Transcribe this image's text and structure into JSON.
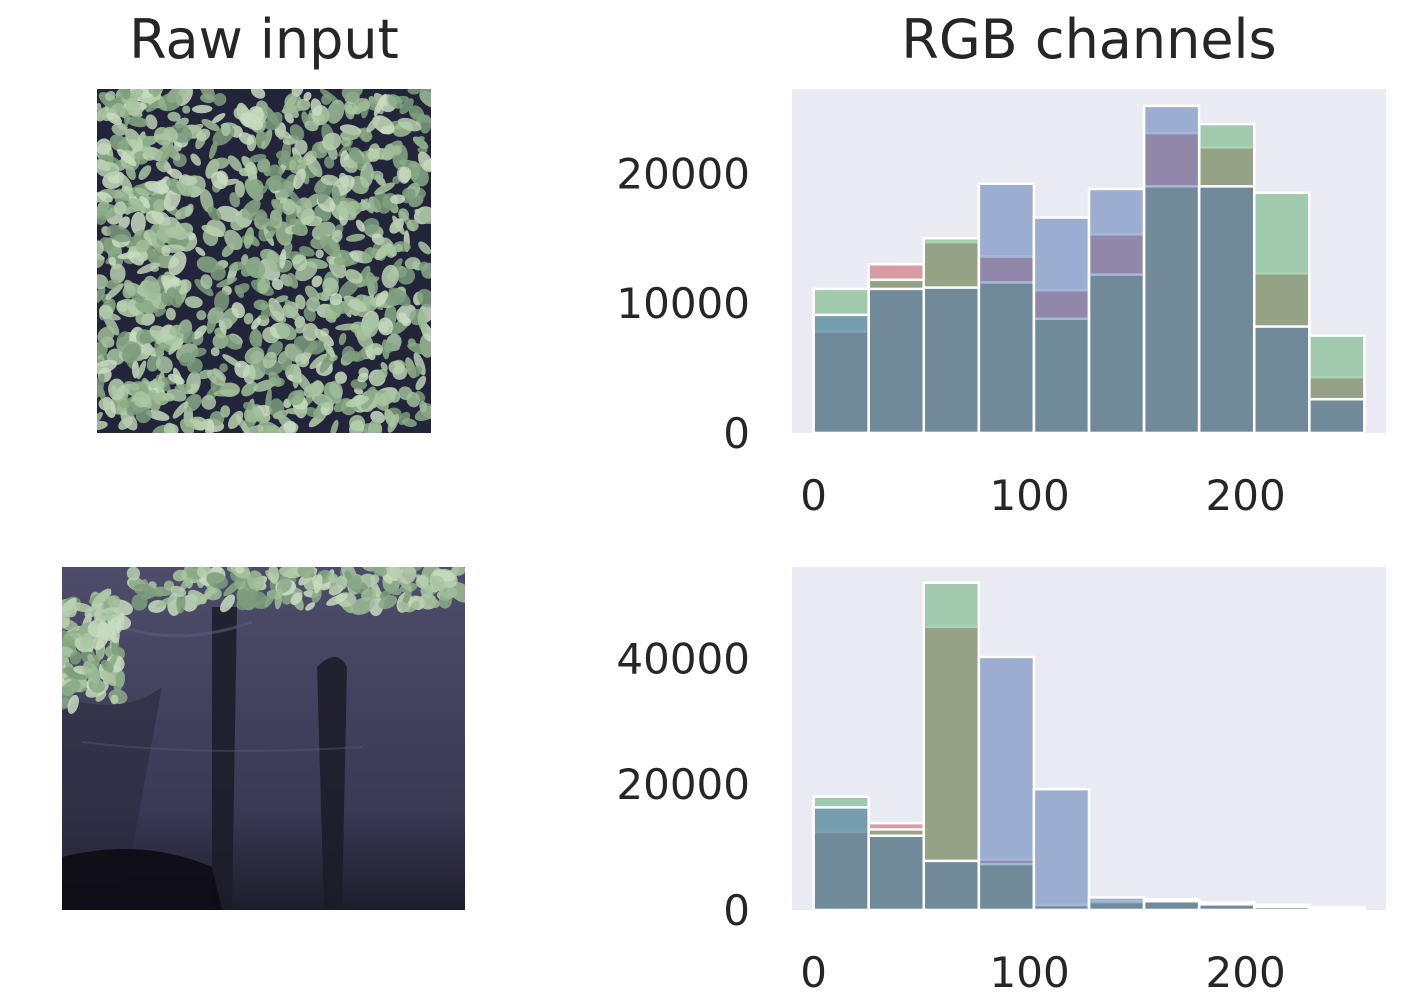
{
  "column_titles": {
    "left": "Raw input",
    "right": "RGB channels"
  },
  "images": [
    {
      "name": "aquatic fern mat over dark water",
      "tone": "mostly green-grey leaves"
    },
    {
      "name": "mostly open dark water with a few leaves",
      "tone": "dark purple-blue"
    }
  ],
  "colors": {
    "red": "#c44e52",
    "green": "#55a868",
    "blue": "#4c72b0",
    "plot_bg": "#eaeaf2",
    "bar_edge": "#ffffff",
    "channel_alpha": 0.5
  },
  "chart_data": [
    {
      "type": "histogram",
      "title": "",
      "bin_edges": [
        0,
        25.5,
        51,
        76.5,
        102,
        127.5,
        153,
        178.5,
        204,
        229.5,
        255
      ],
      "xlim": [
        -10,
        265
      ],
      "ylim": [
        0,
        26500
      ],
      "xticks": [
        0,
        100,
        200
      ],
      "yticks": [
        0,
        10000,
        20000
      ],
      "xtick_labels": [
        "0",
        "100",
        "200"
      ],
      "ytick_labels": [
        "0",
        "10000",
        "20000"
      ],
      "series": [
        {
          "channel": "red",
          "values": [
            7800,
            13000,
            14700,
            13600,
            11000,
            15300,
            23100,
            22000,
            12300,
            4300
          ]
        },
        {
          "channel": "green",
          "values": [
            11100,
            11800,
            15000,
            11600,
            8800,
            12200,
            19000,
            23800,
            18500,
            7500
          ]
        },
        {
          "channel": "blue",
          "values": [
            9100,
            11100,
            11200,
            19200,
            16600,
            18800,
            25200,
            19000,
            8200,
            2600
          ]
        }
      ],
      "grid": false
    },
    {
      "type": "histogram",
      "title": "",
      "bin_edges": [
        0,
        25.5,
        51,
        76.5,
        102,
        127.5,
        153,
        178.5,
        204,
        229.5,
        255
      ],
      "xlim": [
        -10,
        265
      ],
      "ylim": [
        0,
        54500
      ],
      "xticks": [
        0,
        100,
        200
      ],
      "yticks": [
        0,
        20000,
        40000
      ],
      "xtick_labels": [
        "0",
        "100",
        "200"
      ],
      "ytick_labels": [
        "0",
        "20000",
        "40000"
      ],
      "series": [
        {
          "channel": "red",
          "values": [
            12400,
            13800,
            45000,
            8000,
            800,
            1200,
            1700,
            1200,
            800,
            400
          ]
        },
        {
          "channel": "green",
          "values": [
            18000,
            12800,
            52000,
            7300,
            800,
            1400,
            1700,
            1200,
            800,
            400
          ]
        },
        {
          "channel": "blue",
          "values": [
            16300,
            11800,
            7800,
            40200,
            19200,
            2000,
            1400,
            900,
            500,
            200
          ]
        }
      ],
      "grid": false
    }
  ]
}
